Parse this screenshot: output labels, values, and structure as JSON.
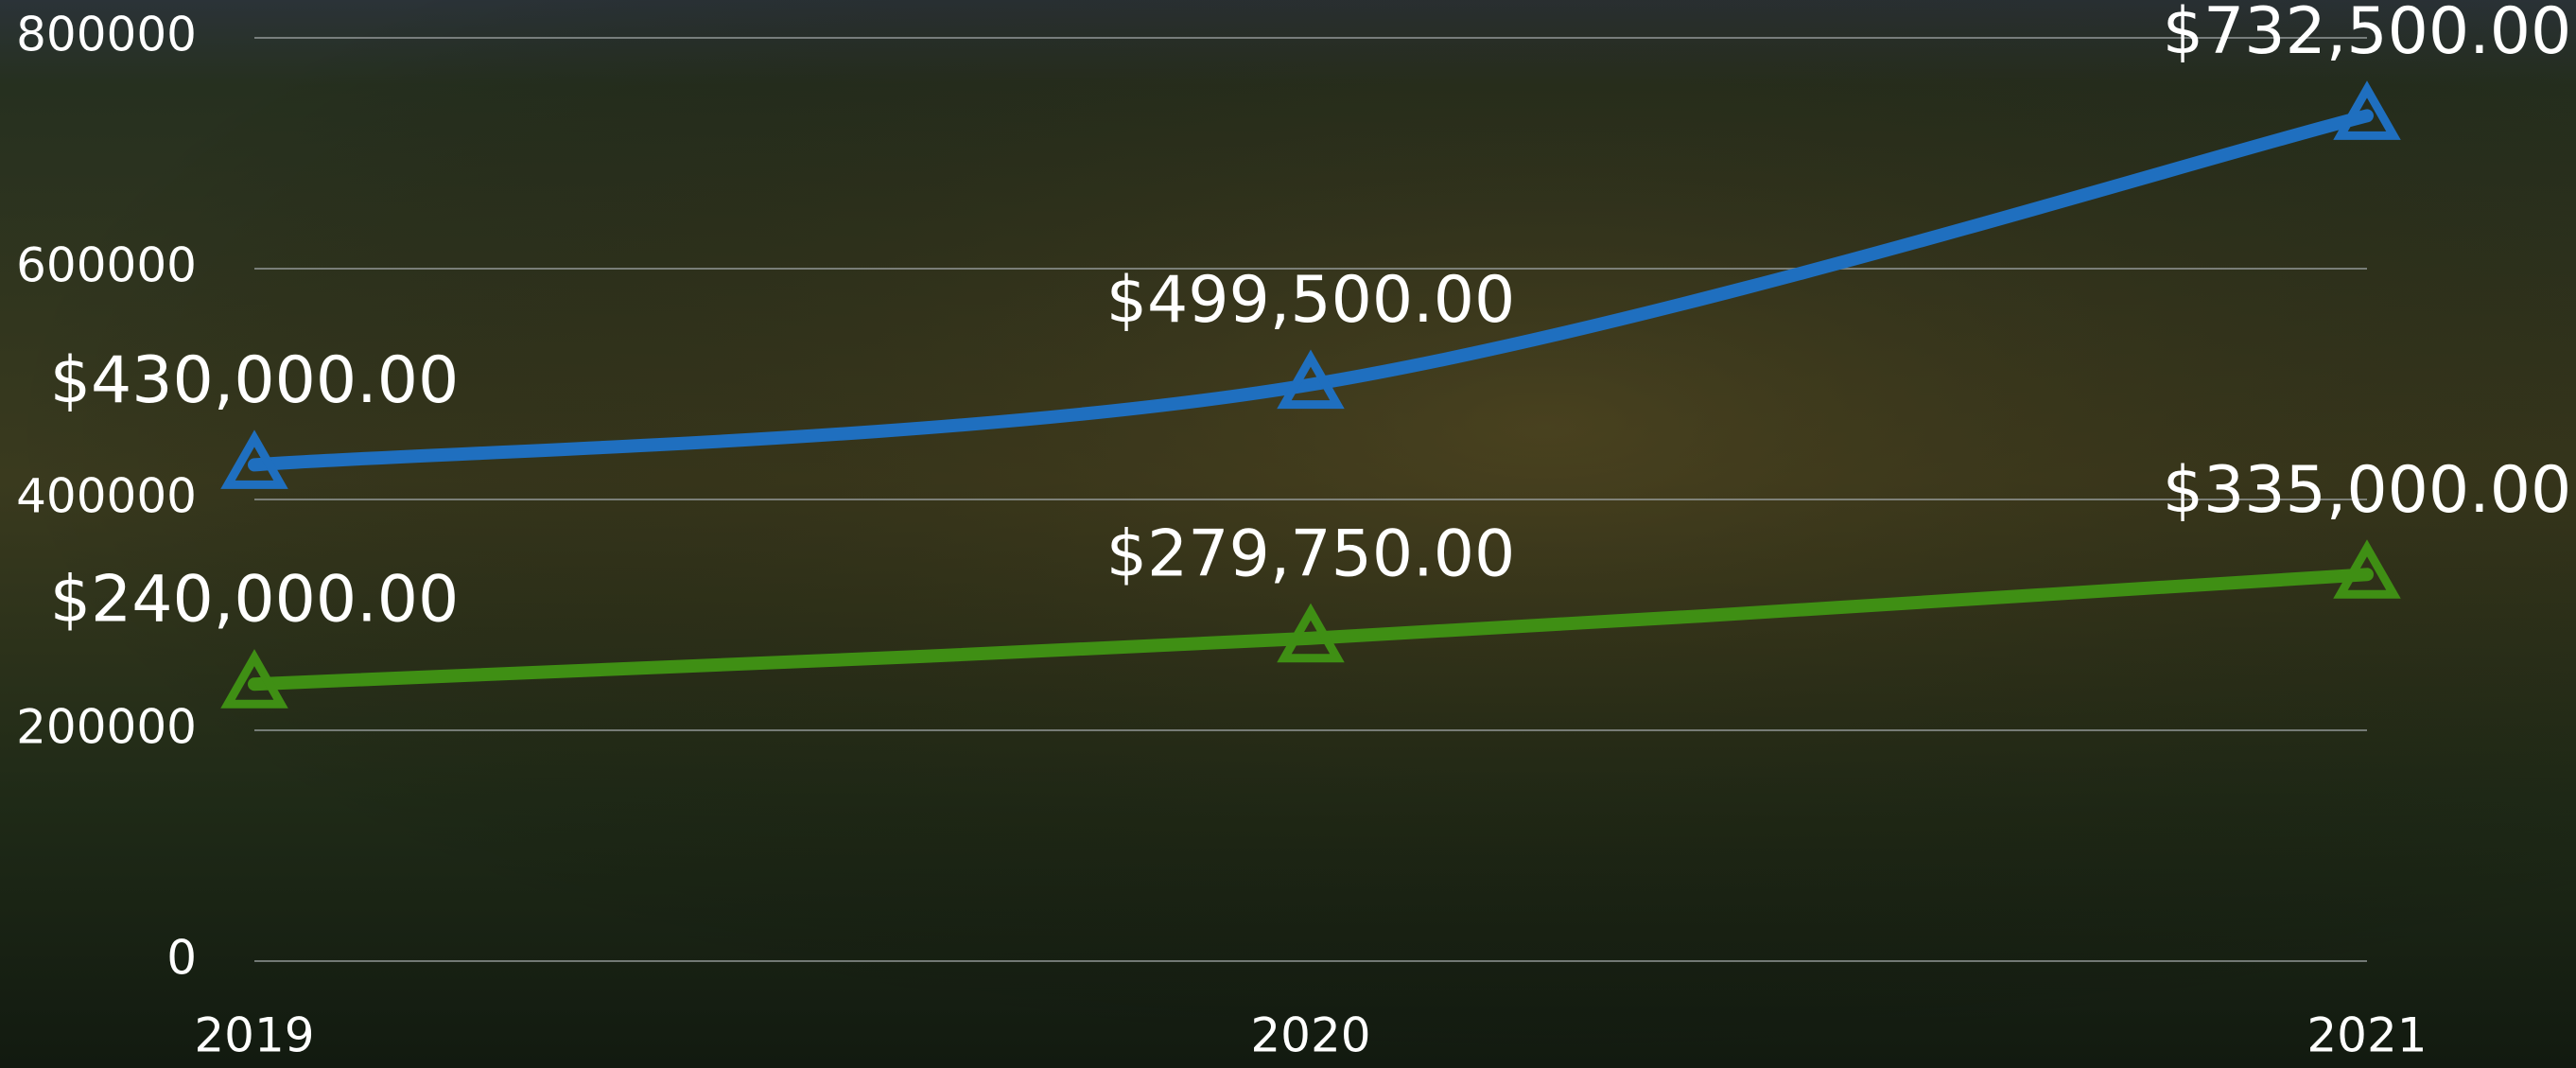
{
  "chart_data": {
    "type": "line",
    "categories": [
      "2019",
      "2020",
      "2021"
    ],
    "series": [
      {
        "color": "#1f6fbf",
        "values": [
          430000,
          499500,
          732500
        ],
        "value_labels": [
          "$430,000.00",
          "$499,500.00",
          "$732,500.00"
        ]
      },
      {
        "color": "#3f8f14",
        "values": [
          240000,
          279750,
          335000
        ],
        "value_labels": [
          "$240,000.00",
          "$279,750.00",
          "$335,000.00"
        ]
      }
    ],
    "ylim": [
      0,
      800000
    ],
    "yticks": [
      0,
      200000,
      400000,
      600000,
      800000
    ],
    "grid": true,
    "smooth": true,
    "marker": "triangle"
  }
}
